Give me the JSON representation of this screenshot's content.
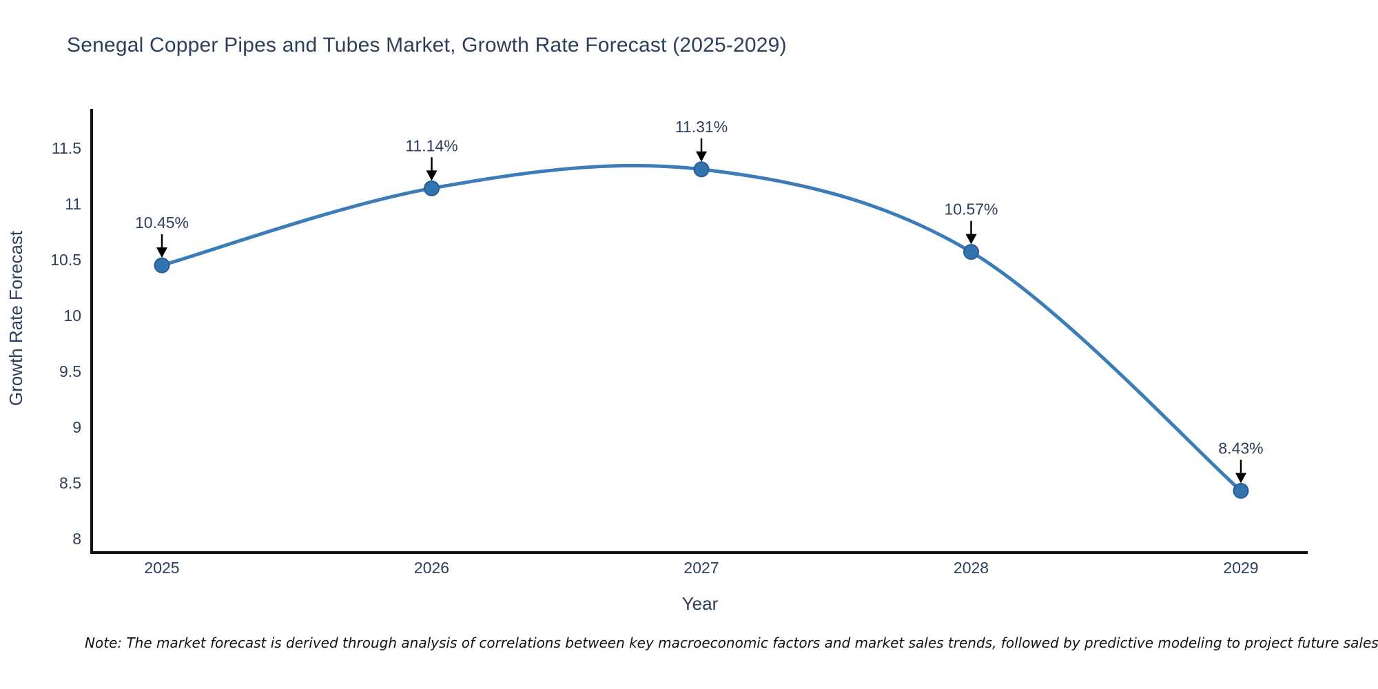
{
  "note": "Note: The market forecast is derived through analysis of correlations between key macroeconomic factors and market sales trends, followed by predictive modeling to project future sales",
  "chart_data": {
    "type": "line",
    "title": "Senegal Copper Pipes and Tubes Market, Growth Rate Forecast (2025-2029)",
    "xlabel": "Year",
    "ylabel": "Growth Rate Forecast",
    "categories": [
      2025,
      2026,
      2027,
      2028,
      2029
    ],
    "values": [
      10.45,
      11.14,
      11.31,
      10.57,
      8.43
    ],
    "point_labels": [
      "10.45%",
      "11.14%",
      "11.31%",
      "10.57%",
      "8.43%"
    ],
    "yticks": [
      8,
      8.5,
      9,
      9.5,
      10,
      10.5,
      11,
      11.5
    ],
    "ylim": [
      7.88,
      11.85
    ],
    "line_shape": "spline",
    "grid": false,
    "legend": "none",
    "annotations": "value labels with black arrows pointing to each marker",
    "colors": {
      "line": "#3c7cb8",
      "marker_fill": "#3273b0",
      "marker_edge": "#2a5d90",
      "axis_line": "#111111",
      "text": "#2e3f5c",
      "arrow": "#000000",
      "background": "#ffffff"
    }
  }
}
